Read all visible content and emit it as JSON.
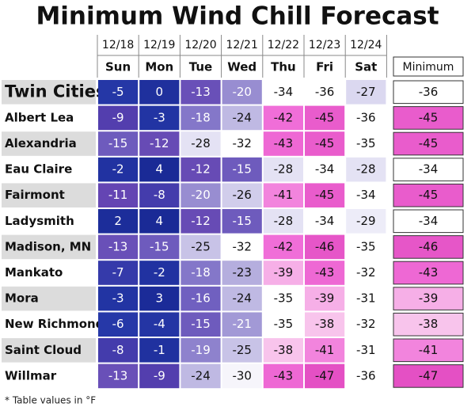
{
  "title": "Minimum Wind Chill Forecast",
  "dates": [
    "12/18",
    "12/19",
    "12/20",
    "12/21",
    "12/22",
    "12/23",
    "12/24"
  ],
  "days": [
    "Sun",
    "Mon",
    "Tue",
    "Wed",
    "Thu",
    "Fri",
    "Sat"
  ],
  "minimum_header": "Minimum",
  "rows": [
    {
      "city": "Twin Cities",
      "values": [
        -5,
        0,
        -13,
        -20,
        -34,
        -36,
        -27
      ],
      "minimum": -36
    },
    {
      "city": "Albert Lea",
      "values": [
        -9,
        -3,
        -18,
        -24,
        -42,
        -45,
        -36
      ],
      "minimum": -45
    },
    {
      "city": "Alexandria",
      "values": [
        -15,
        -12,
        -28,
        -32,
        -43,
        -45,
        -35
      ],
      "minimum": -45
    },
    {
      "city": "Eau Claire",
      "values": [
        -2,
        4,
        -12,
        -15,
        -28,
        -34,
        -28
      ],
      "minimum": -34
    },
    {
      "city": "Fairmont",
      "values": [
        -11,
        -8,
        -20,
        -26,
        -41,
        -45,
        -34
      ],
      "minimum": -45
    },
    {
      "city": "Ladysmith",
      "values": [
        2,
        4,
        -12,
        -15,
        -28,
        -34,
        -29
      ],
      "minimum": -34
    },
    {
      "city": "Madison, MN",
      "values": [
        -13,
        -15,
        -25,
        -32,
        -42,
        -46,
        -35
      ],
      "minimum": -46
    },
    {
      "city": "Mankato",
      "values": [
        -7,
        -2,
        -18,
        -23,
        -39,
        -43,
        -32
      ],
      "minimum": -43
    },
    {
      "city": "Mora",
      "values": [
        -3,
        3,
        -16,
        -24,
        -35,
        -39,
        -31
      ],
      "minimum": -39
    },
    {
      "city": "New Richmond",
      "values": [
        -6,
        -4,
        -15,
        -21,
        -35,
        -38,
        -32
      ],
      "minimum": -38
    },
    {
      "city": "Saint Cloud",
      "values": [
        -8,
        -1,
        -19,
        -25,
        -38,
        -41,
        -31
      ],
      "minimum": -41
    },
    {
      "city": "Willmar",
      "values": [
        -13,
        -9,
        -24,
        -30,
        -43,
        -47,
        -36
      ],
      "minimum": -47
    }
  ],
  "footnote": "* Table values in °F"
}
